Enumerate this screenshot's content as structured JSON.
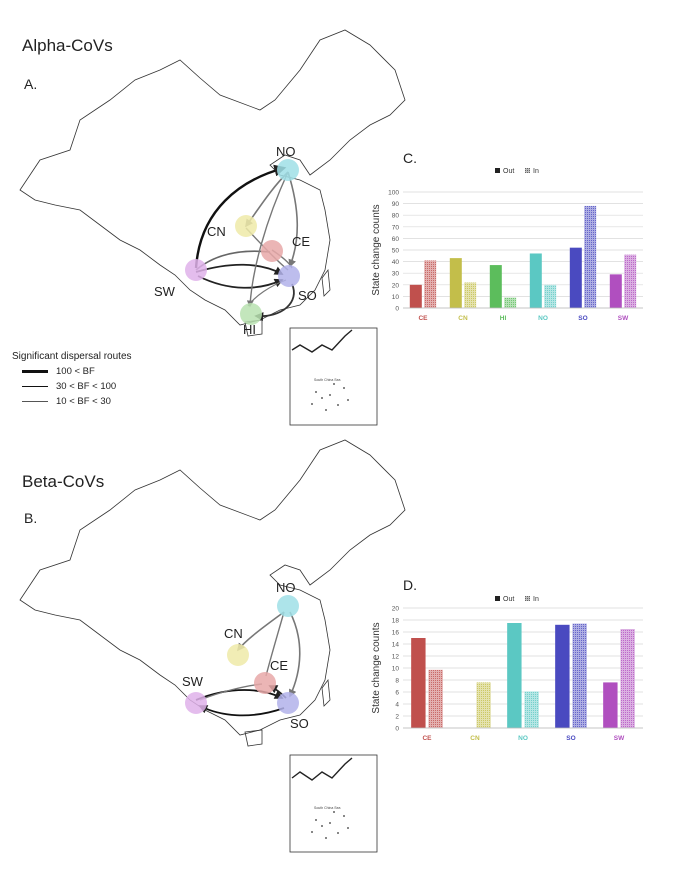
{
  "figure": {
    "alpha": {
      "title": "Alpha-CoVs",
      "panel_map": "A.",
      "panel_chart": "C.",
      "nodes": [
        {
          "id": "NO",
          "label": "NO",
          "color": "#9fdfe6"
        },
        {
          "id": "CN",
          "label": "CN",
          "color": "#eeeaa8"
        },
        {
          "id": "CE",
          "label": "CE",
          "color": "#e8a8a8"
        },
        {
          "id": "SW",
          "label": "SW",
          "color": "#dfb2ea"
        },
        {
          "id": "SO",
          "label": "SO",
          "color": "#b2b2ea"
        },
        {
          "id": "HI",
          "label": "HI",
          "color": "#b8e2b0"
        }
      ],
      "inset_label": "South China Sea"
    },
    "beta": {
      "title": "Beta-CoVs",
      "panel_map": "B.",
      "panel_chart": "D.",
      "nodes": [
        {
          "id": "NO",
          "label": "NO",
          "color": "#9fdfe6"
        },
        {
          "id": "CN",
          "label": "CN",
          "color": "#eeeaa8"
        },
        {
          "id": "CE",
          "label": "CE",
          "color": "#e8a8a8"
        },
        {
          "id": "SW",
          "label": "SW",
          "color": "#dfb2ea"
        },
        {
          "id": "SO",
          "label": "SO",
          "color": "#b2b2ea"
        }
      ],
      "inset_label": "South China Sea"
    },
    "legend": {
      "title": "Significant dispersal routes",
      "items": [
        "100 < BF",
        "30 < BF < 100",
        "10 < BF < 30"
      ]
    },
    "colors": {
      "CE": "#c0504d",
      "CN": "#c3be4a",
      "HI": "#5cbd5c",
      "NO": "#5bc8c3",
      "SO": "#4a4ac0",
      "SW": "#b04fbf"
    }
  },
  "chart_data": [
    {
      "type": "bar",
      "panel": "C.",
      "ylabel": "State change counts",
      "legend": [
        "Out",
        "In"
      ],
      "legend_position": "top",
      "categories": [
        "CE",
        "CN",
        "HI",
        "NO",
        "SO",
        "SW"
      ],
      "series": [
        {
          "name": "Out",
          "values": [
            20,
            43,
            37,
            47,
            52,
            29
          ]
        },
        {
          "name": "In",
          "values": [
            41,
            22,
            9,
            20,
            88,
            46
          ]
        }
      ],
      "ylim": [
        0,
        100
      ],
      "yticks": [
        0,
        10,
        20,
        30,
        40,
        50,
        60,
        70,
        80,
        90,
        100
      ],
      "grid": true
    },
    {
      "type": "bar",
      "panel": "D.",
      "ylabel": "State change counts",
      "legend": [
        "Out",
        "In"
      ],
      "legend_position": "top",
      "categories": [
        "CE",
        "CN",
        "NO",
        "SO",
        "SW"
      ],
      "series": [
        {
          "name": "Out",
          "values": [
            15,
            0,
            17.5,
            17.2,
            7.6
          ]
        },
        {
          "name": "In",
          "values": [
            9.7,
            7.6,
            6.1,
            17.4,
            16.5
          ]
        }
      ],
      "ylim": [
        0,
        20
      ],
      "yticks": [
        0,
        2,
        4,
        6,
        8,
        10,
        12,
        14,
        16,
        18,
        20
      ],
      "grid": true
    }
  ]
}
